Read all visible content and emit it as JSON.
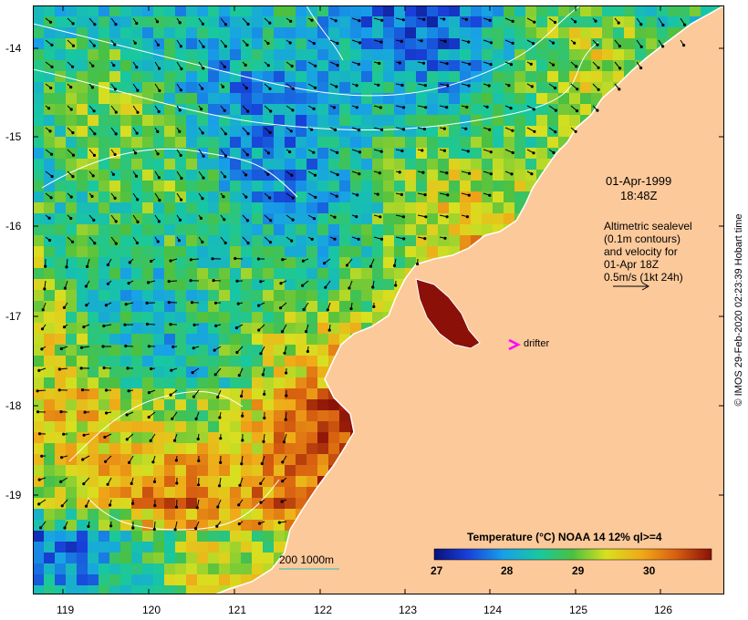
{
  "map": {
    "lat_ticks": [
      "-14",
      "-15",
      "-16",
      "-17",
      "-18",
      "-19"
    ],
    "lon_ticks": [
      "119",
      "120",
      "121",
      "122",
      "123",
      "124",
      "125",
      "126"
    ],
    "colors": {
      "land": "#fcc99b",
      "coast": "#ffffff",
      "contour": "#ffffff",
      "vector": "#000000",
      "drifter": "#ff00ff"
    }
  },
  "annotations": {
    "date": "01-Apr-1999",
    "time": "18:48Z",
    "legend_lines": [
      "Altimetric sealevel",
      "(0.1m contours)",
      "and velocity for",
      "01-Apr 18Z",
      "0.5m/s (1kt 24h)"
    ],
    "drifter_label": "drifter",
    "bathy_label": "200  1000m"
  },
  "colorbar": {
    "title": "Temperature (°C) NOAA 14 12% ql>=4",
    "ticks": [
      "27",
      "28",
      "29",
      "30"
    ],
    "range": [
      27,
      30.8
    ]
  },
  "credit": "© IMOS 29-Feb-2020 02:23:39 Hobart time"
}
